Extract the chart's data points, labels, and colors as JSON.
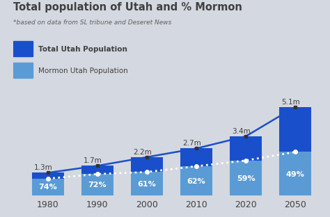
{
  "years": [
    1980,
    1990,
    2000,
    2010,
    2020,
    2050
  ],
  "total_pop": [
    1.3,
    1.7,
    2.2,
    2.7,
    3.4,
    5.1
  ],
  "mormon_pct": [
    0.74,
    0.72,
    0.61,
    0.62,
    0.59,
    0.49
  ],
  "pct_labels": [
    "74%",
    "72%",
    "61%",
    "62%",
    "59%",
    "49%"
  ],
  "pop_labels": [
    "1.3m",
    "1.7m",
    "2.2m",
    "2.7m",
    "3.4m",
    "5.1m"
  ],
  "title": "Total population of Utah and % Mormon",
  "subtitle": "*based on data from SL tribune and Deseret News",
  "legend1": "Total Utah Population",
  "legend2": "Mormon Utah Population",
  "bar_color_dark": "#1a4fcc",
  "bar_color_light": "#5b9bd5",
  "bg_color": "#d4d8e0",
  "text_color_dark": "#404040",
  "text_color_white": "#ffffff",
  "bar_width": 0.65,
  "ylim": [
    0,
    6.5
  ]
}
